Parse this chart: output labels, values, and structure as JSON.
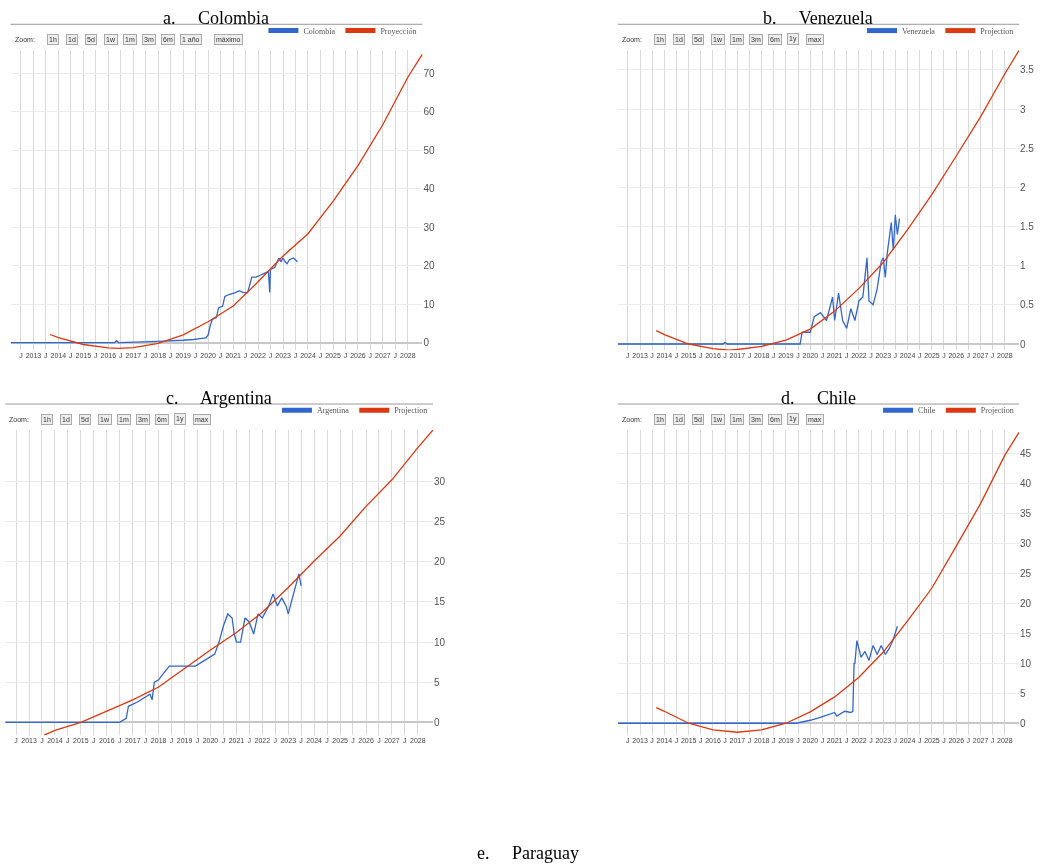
{
  "chart_data": [
    {
      "type": "line",
      "title": "a.     Colombia",
      "annotations": [
        "Zoom:",
        "1h",
        "1d",
        "5d",
        "1w",
        "1m",
        "3m",
        "6m",
        "1 año",
        "máximo"
      ],
      "legend": "top right",
      "grid": true,
      "xlim": [
        "2012-02",
        "2028-08"
      ],
      "ylim": [
        -2,
        76
      ],
      "yticks": [
        0,
        10,
        20,
        30,
        40,
        50,
        60,
        70
      ],
      "xticks": [
        {
          "value": "2012-07",
          "label": "J"
        },
        "2013",
        {
          "value": "2013-07",
          "label": "J"
        },
        "2014",
        {
          "value": "2014-07",
          "label": "J"
        },
        "2015",
        {
          "value": "2015-07",
          "label": "J"
        },
        "2016",
        {
          "value": "2016-07",
          "label": "J"
        },
        "2017",
        {
          "value": "2017-07",
          "label": "J"
        },
        "2018",
        {
          "value": "2018-07",
          "label": "J"
        },
        "2019",
        {
          "value": "2019-07",
          "label": "J"
        },
        "2020",
        {
          "value": "2020-07",
          "label": "J"
        },
        "2021",
        {
          "value": "2021-07",
          "label": "J"
        },
        "2022",
        {
          "value": "2022-07",
          "label": "J"
        },
        "2023",
        {
          "value": "2023-07",
          "label": "J"
        },
        "2024",
        {
          "value": "2024-07",
          "label": "J"
        },
        "2025",
        {
          "value": "2025-07",
          "label": "J"
        },
        "2026",
        {
          "value": "2026-07",
          "label": "J"
        },
        "2027",
        {
          "value": "2027-07",
          "label": "J"
        },
        "2028"
      ],
      "series": [
        {
          "name": "Colombia",
          "color": "#3366cc",
          "x": [
            "2012-02",
            "2016-04",
            "2016-05",
            "2016-06",
            "2018-01",
            "2019-01",
            "2019-06",
            "2019-09",
            "2019-12",
            "2020-01",
            "2020-02",
            "2020-03",
            "2020-05",
            "2020-06",
            "2020-08",
            "2020-09",
            "2020-11",
            "2021-02",
            "2021-04",
            "2021-06",
            "2021-08",
            "2021-09",
            "2021-10",
            "2021-12",
            "2022-02",
            "2022-04",
            "2022-06",
            "2022-06-20",
            "2022-07",
            "2022-09",
            "2022-11",
            "2022-12",
            "2023-01",
            "2023-02",
            "2023-03",
            "2023-04",
            "2023-06",
            "2023-08"
          ],
          "values": [
            0,
            0,
            0.5,
            0,
            0.3,
            0.6,
            0.8,
            1,
            1.2,
            2,
            4.5,
            6,
            6.5,
            9,
            9.5,
            12,
            12.5,
            13,
            13.5,
            13,
            13,
            15,
            17,
            17,
            17.5,
            18,
            18.5,
            13,
            19,
            19.5,
            22,
            21,
            22,
            21,
            20.5,
            21.5,
            22,
            21
          ]
        },
        {
          "name": "Proyección",
          "color": "#dc3912",
          "x": [
            "2013-09",
            "2014",
            "2015",
            "2016",
            "2016-06",
            "2017",
            "2018",
            "2019",
            "2020",
            "2021",
            "2022",
            "2023",
            "2024",
            "2025",
            "2026",
            "2027",
            "2028",
            "2028-08"
          ],
          "values": [
            2.1,
            1.3,
            -0.5,
            -1.4,
            -1.5,
            -1.3,
            -0.2,
            2,
            5.4,
            9.5,
            15.8,
            22.5,
            28.3,
            36.7,
            46,
            56.7,
            69,
            75
          ]
        }
      ]
    },
    {
      "type": "line",
      "title": "b.     Venezuela",
      "annotations": [
        "Zoom:",
        "1h",
        "1d",
        "5d",
        "1w",
        "1m",
        "3m",
        "6m",
        "1y",
        "max"
      ],
      "legend": "top right",
      "grid": true,
      "xlim": [
        "2012-02",
        "2028-08"
      ],
      "ylim": [
        -0.08,
        3.75
      ],
      "yticks": [
        0,
        0.5,
        1,
        1.5,
        2,
        2.5,
        3,
        3.5
      ],
      "xticks": [
        {
          "value": "2012-07",
          "label": "J"
        },
        "2013",
        {
          "value": "2013-07",
          "label": "J"
        },
        "2014",
        {
          "value": "2014-07",
          "label": "J"
        },
        "2015",
        {
          "value": "2015-07",
          "label": "J"
        },
        "2016",
        {
          "value": "2016-07",
          "label": "J"
        },
        "2017",
        {
          "value": "2017-07",
          "label": "J"
        },
        "2018",
        {
          "value": "2018-07",
          "label": "J"
        },
        "2019",
        {
          "value": "2019-07",
          "label": "J"
        },
        "2020",
        {
          "value": "2020-07",
          "label": "J"
        },
        "2021",
        {
          "value": "2021-07",
          "label": "J"
        },
        "2022",
        {
          "value": "2022-07",
          "label": "J"
        },
        "2023",
        {
          "value": "2023-07",
          "label": "J"
        },
        "2024",
        {
          "value": "2024-07",
          "label": "J"
        },
        "2025",
        {
          "value": "2025-07",
          "label": "J"
        },
        "2026",
        {
          "value": "2026-07",
          "label": "J"
        },
        "2027",
        {
          "value": "2027-07",
          "label": "J"
        },
        "2028"
      ],
      "series": [
        {
          "name": "Venezuela",
          "color": "#3366cc",
          "x": [
            "2012-02",
            "2016-06",
            "2016-07",
            "2016-08",
            "2019-08",
            "2019-09",
            "2020-01",
            "2020-03",
            "2020-06",
            "2020-09",
            "2020-12",
            "2021-01",
            "2021-03",
            "2021-05",
            "2021-07",
            "2021-09",
            "2021-11",
            "2022-01",
            "2022-03",
            "2022-05",
            "2022-06",
            "2022-08",
            "2022-10",
            "2022-12",
            "2023-01",
            "2023-02",
            "2023-03",
            "2023-05",
            "2023-06",
            "2023-07",
            "2023-08",
            "2023-09"
          ],
          "values": [
            0,
            0,
            0.02,
            0,
            0,
            0.15,
            0.15,
            0.35,
            0.4,
            0.3,
            0.6,
            0.3,
            0.65,
            0.3,
            0.2,
            0.45,
            0.3,
            0.55,
            0.6,
            1.1,
            0.55,
            0.5,
            0.7,
            1.05,
            1.1,
            0.85,
            1.15,
            1.55,
            1.2,
            1.65,
            1.4,
            1.6
          ]
        },
        {
          "name": "Projection",
          "color": "#dc3912",
          "x": [
            "2013-09",
            "2014",
            "2015",
            "2016",
            "2016-09",
            "2017",
            "2018",
            "2019",
            "2020",
            "2021",
            "2022",
            "2023",
            "2024",
            "2025",
            "2026",
            "2027",
            "2028",
            "2028-08"
          ],
          "values": [
            0.17,
            0.12,
            0,
            -0.06,
            -0.08,
            -0.07,
            -0.03,
            0.05,
            0.19,
            0.42,
            0.71,
            1.04,
            1.46,
            1.91,
            2.4,
            2.9,
            3.45,
            3.75
          ]
        }
      ]
    },
    {
      "type": "line",
      "title": "c.     Argentina",
      "annotations": [
        "Zoom:",
        "1h",
        "1d",
        "5d",
        "1w",
        "1m",
        "3m",
        "6m",
        "1y",
        "max"
      ],
      "legend": "top right",
      "grid": true,
      "xlim": [
        "2012-02",
        "2028-08"
      ],
      "ylim": [
        -1.6,
        36.4
      ],
      "yticks": [
        0,
        5,
        10,
        15,
        20,
        25,
        30
      ],
      "xticks": [
        {
          "value": "2012-07",
          "label": "J"
        },
        "2013",
        {
          "value": "2013-07",
          "label": "J"
        },
        "2014",
        {
          "value": "2014-07",
          "label": "J"
        },
        "2015",
        {
          "value": "2015-07",
          "label": "J"
        },
        "2016",
        {
          "value": "2016-07",
          "label": "J"
        },
        "2017",
        {
          "value": "2017-07",
          "label": "J"
        },
        "2018",
        {
          "value": "2018-07",
          "label": "J"
        },
        "2019",
        {
          "value": "2019-07",
          "label": "J"
        },
        "2020",
        {
          "value": "2020-07",
          "label": "J"
        },
        "2021",
        {
          "value": "2021-07",
          "label": "J"
        },
        "2022",
        {
          "value": "2022-07",
          "label": "J"
        },
        "2023",
        {
          "value": "2023-07",
          "label": "J"
        },
        "2024",
        {
          "value": "2024-07",
          "label": "J"
        },
        "2025",
        {
          "value": "2025-07",
          "label": "J"
        },
        "2026",
        {
          "value": "2026-07",
          "label": "J"
        },
        "2027",
        {
          "value": "2027-07",
          "label": "J"
        },
        "2028"
      ],
      "series": [
        {
          "name": "Argentina",
          "color": "#3366cc",
          "x": [
            "2012-02",
            "2016-07",
            "2016-10",
            "2016-11",
            "2017-03",
            "2017-06",
            "2017-09",
            "2017-10",
            "2017-11",
            "2018-01",
            "2018-03",
            "2018-06",
            "2018-12",
            "2019-06",
            "2019-09",
            "2019-12",
            "2020-03",
            "2020-05",
            "2020-07",
            "2020-09",
            "2020-11",
            "2020-12",
            "2021-01",
            "2021-03",
            "2021-05",
            "2021-07",
            "2021-09",
            "2021-11",
            "2022-01",
            "2022-04",
            "2022-06",
            "2022-08",
            "2022-10",
            "2022-12",
            "2023-01",
            "2023-03",
            "2023-05",
            "2023-06",
            "2023-07"
          ],
          "values": [
            0,
            0,
            0.5,
            2,
            2.5,
            3,
            3.5,
            2.8,
            5,
            5.3,
            6,
            7,
            7,
            7,
            7.5,
            8,
            8.5,
            10,
            12,
            13.5,
            13,
            11,
            10,
            10,
            13,
            12.5,
            11,
            13.5,
            13,
            14.5,
            16,
            14.5,
            15.5,
            14.5,
            13.5,
            15.5,
            17.5,
            18.5,
            17
          ]
        },
        {
          "name": "Projection",
          "color": "#dc3912",
          "x": [
            "2013-08",
            "2014",
            "2015",
            "2016",
            "2017",
            "2018",
            "2019",
            "2020",
            "2021",
            "2022",
            "2023",
            "2024",
            "2025",
            "2026",
            "2027",
            "2028",
            "2028-08"
          ],
          "values": [
            -1.6,
            -1,
            0,
            1.4,
            2.8,
            4.4,
            6.7,
            9,
            11.2,
            13.7,
            16.8,
            20.1,
            23.2,
            26.9,
            30.2,
            34.2,
            36.4
          ]
        }
      ]
    },
    {
      "type": "line",
      "title": "d.     Chile",
      "annotations": [
        "Zoom:",
        "1h",
        "1d",
        "5d",
        "1w",
        "1m",
        "3m",
        "6m",
        "1y",
        "max"
      ],
      "legend": "top right",
      "grid": true,
      "xlim": [
        "2012-02",
        "2028-08"
      ],
      "ylim": [
        -2,
        49
      ],
      "yticks": [
        0,
        5,
        10,
        15,
        20,
        25,
        30,
        35,
        40,
        45
      ],
      "xticks": [
        {
          "value": "2012-07",
          "label": "J"
        },
        "2013",
        {
          "value": "2013-07",
          "label": "J"
        },
        "2014",
        {
          "value": "2014-07",
          "label": "J"
        },
        "2015",
        {
          "value": "2015-07",
          "label": "J"
        },
        "2016",
        {
          "value": "2016-07",
          "label": "J"
        },
        "2017",
        {
          "value": "2017-07",
          "label": "J"
        },
        "2018",
        {
          "value": "2018-07",
          "label": "J"
        },
        "2019",
        {
          "value": "2019-07",
          "label": "J"
        },
        "2020",
        {
          "value": "2020-07",
          "label": "J"
        },
        "2021",
        {
          "value": "2021-07",
          "label": "J"
        },
        "2022",
        {
          "value": "2022-07",
          "label": "J"
        },
        "2023",
        {
          "value": "2023-07",
          "label": "J"
        },
        "2024",
        {
          "value": "2024-07",
          "label": "J"
        },
        "2025",
        {
          "value": "2025-07",
          "label": "J"
        },
        "2026",
        {
          "value": "2026-07",
          "label": "J"
        },
        "2027",
        {
          "value": "2027-07",
          "label": "J"
        },
        "2028"
      ],
      "series": [
        {
          "name": "Chile",
          "color": "#3366cc",
          "x": [
            "2012-02",
            "2019-06",
            "2020-01",
            "2020-06",
            "2021-01",
            "2021-02",
            "2021-06",
            "2021-09",
            "2021-10",
            "2021-10-20",
            "2021-11",
            "2021-12",
            "2022-02",
            "2022-04",
            "2022-06",
            "2022-08",
            "2022-10",
            "2022-12",
            "2023-02",
            "2023-04",
            "2023-06",
            "2023-08"
          ],
          "values": [
            0,
            0,
            0.5,
            1,
            1.8,
            1.2,
            2,
            1.8,
            2,
            10,
            10,
            13.8,
            11,
            12,
            10.5,
            13,
            11.5,
            13,
            11.5,
            12.5,
            14,
            16.2
          ]
        },
        {
          "name": "Projection",
          "color": "#dc3912",
          "x": [
            "2013-09",
            "2014",
            "2015",
            "2016",
            "2017",
            "2018",
            "2019",
            "2020",
            "2021",
            "2022",
            "2023",
            "2024",
            "2025",
            "2026",
            "2027",
            "2028",
            "2028-08"
          ],
          "values": [
            2.6,
            2,
            0,
            -1.1,
            -1.5,
            -1.1,
            0,
            1.9,
            4.4,
            7.7,
            11.9,
            17.1,
            22.6,
            29.6,
            36.7,
            44.8,
            48.6
          ]
        }
      ]
    },
    {
      "type": "other",
      "title": "e.     Paraguay"
    }
  ]
}
